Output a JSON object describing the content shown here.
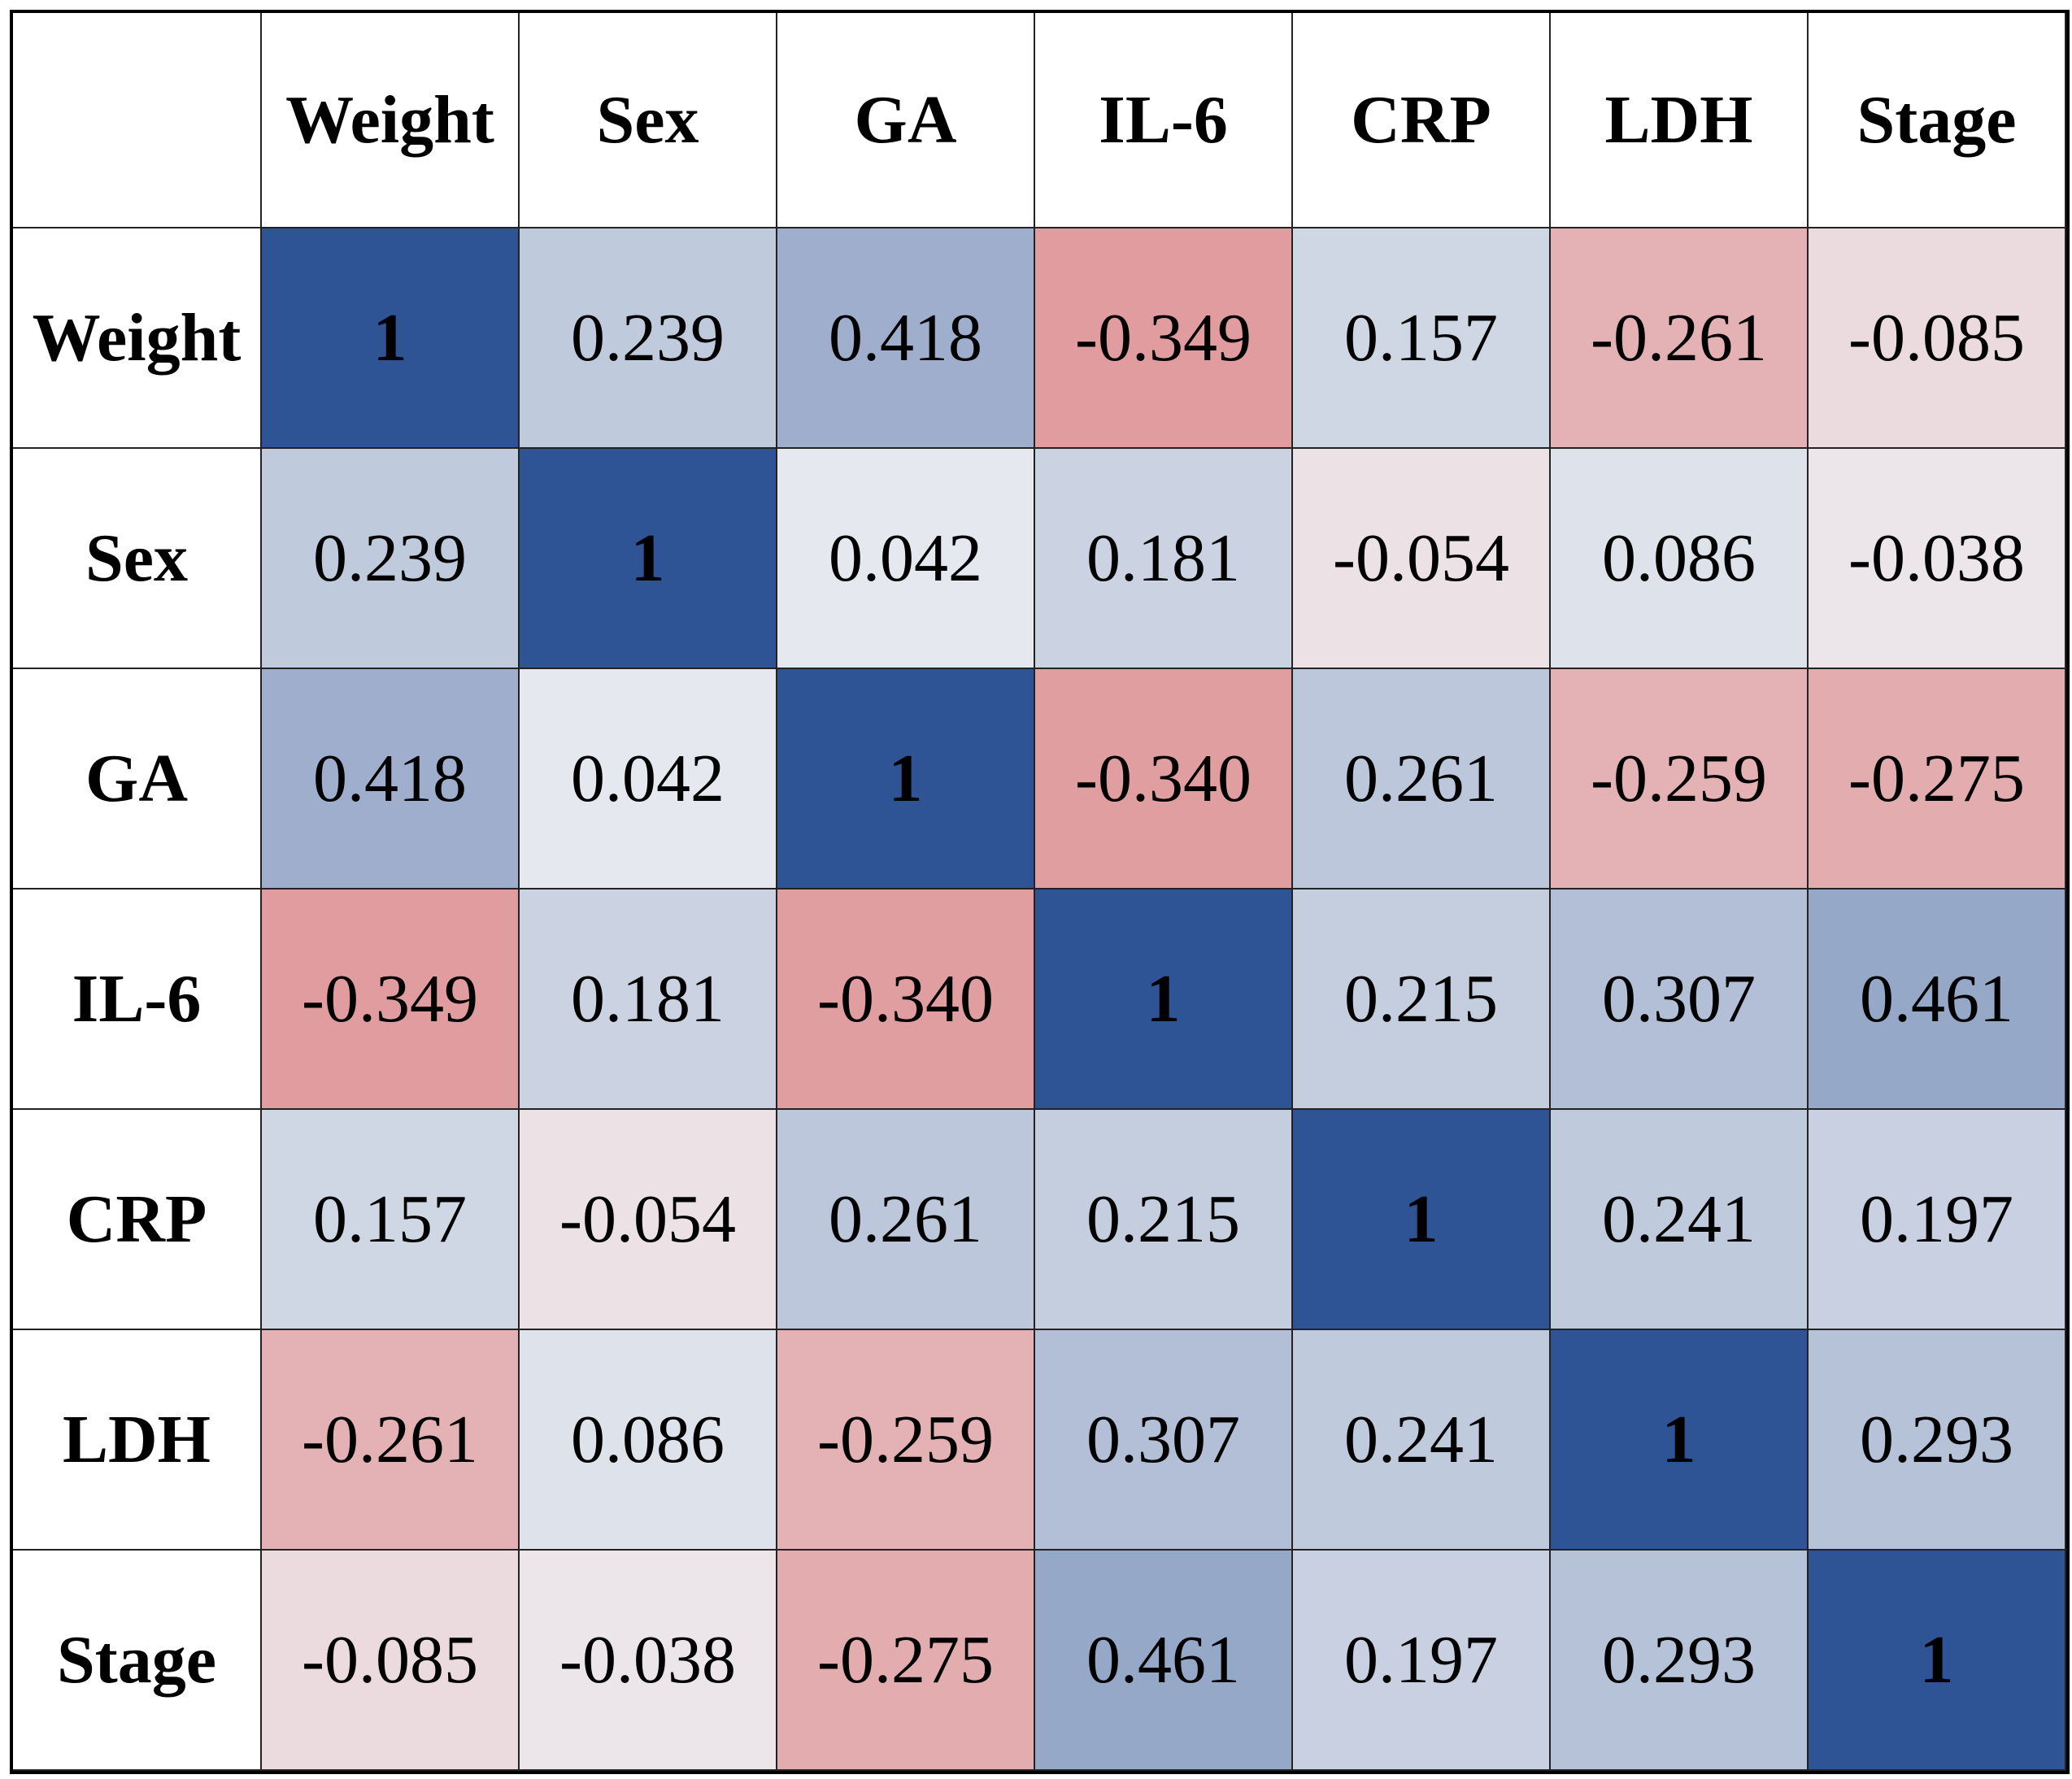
{
  "table": {
    "header": [
      "Weight",
      "Sex",
      "GA",
      "IL-6",
      "CRP",
      "LDH",
      "Stage"
    ],
    "rows": [
      [
        "Weight",
        "1",
        "0.239",
        "0.418",
        "-0.349",
        "0.157",
        "-0.261",
        "-0.085"
      ],
      [
        "Sex",
        "0.239",
        "1",
        "0.042",
        "0.181",
        "-0.054",
        "0.086",
        "-0.038"
      ],
      [
        "GA",
        "0.418",
        "0.042",
        "1",
        "-0.340",
        "0.261",
        "-0.259",
        "-0.275"
      ],
      [
        "IL-6",
        "-0.349",
        "0.181",
        "-0.340",
        "1",
        "0.215",
        "0.307",
        "0.461"
      ],
      [
        "CRP",
        "0.157",
        "-0.054",
        "0.261",
        "0.215",
        "1",
        "0.241",
        "0.197"
      ],
      [
        "LDH",
        "-0.261",
        "0.086",
        "-0.259",
        "0.307",
        "0.241",
        "1",
        "0.293"
      ],
      [
        "Stage",
        "-0.085",
        "-0.038",
        "-0.275",
        "0.461",
        "0.197",
        "0.293",
        "1"
      ]
    ]
  }
}
